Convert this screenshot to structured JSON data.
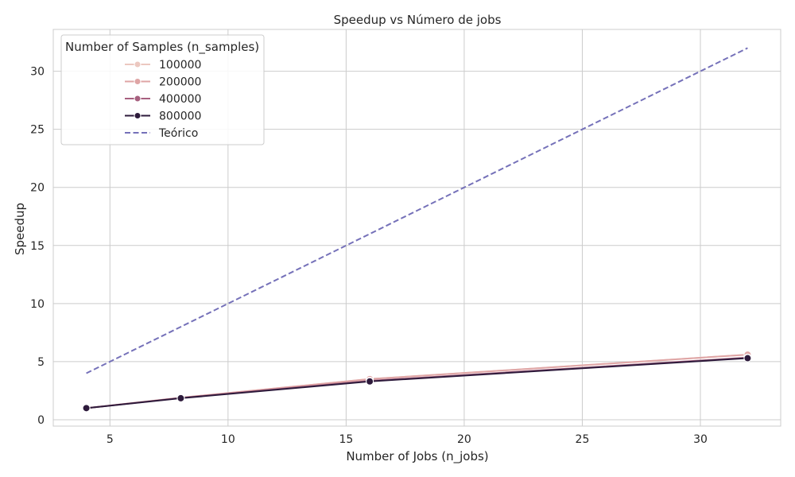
{
  "chart_data": {
    "type": "line",
    "title": "Speedup vs Número de jobs",
    "xlabel": "Number of Jobs (n_jobs)",
    "ylabel": "Speedup",
    "xlim": [
      2.6,
      33.4
    ],
    "ylim": [
      -0.55,
      33.6
    ],
    "xticks": [
      5,
      10,
      15,
      20,
      25,
      30
    ],
    "yticks": [
      0,
      5,
      10,
      15,
      20,
      25,
      30
    ],
    "grid": true,
    "legend": {
      "title": "Number of Samples (n_samples)",
      "placement": "top-left"
    },
    "x": [
      4,
      8,
      16,
      32
    ],
    "series": [
      {
        "name": "100000",
        "values": [
          1.0,
          1.9,
          3.5,
          5.6
        ],
        "color": "#ecc8c0",
        "marker": true,
        "dashed": false
      },
      {
        "name": "200000",
        "values": [
          1.0,
          1.9,
          3.5,
          5.6
        ],
        "color": "#dfa5a5",
        "marker": true,
        "dashed": false
      },
      {
        "name": "400000",
        "values": [
          1.0,
          1.88,
          3.35,
          5.35
        ],
        "color": "#a7607f",
        "marker": true,
        "dashed": false
      },
      {
        "name": "800000",
        "values": [
          1.0,
          1.85,
          3.3,
          5.3
        ],
        "color": "#2d1a3b",
        "marker": true,
        "dashed": false
      },
      {
        "name": "Teórico",
        "values": [
          4,
          8,
          16,
          32
        ],
        "color": "#7571b9",
        "marker": false,
        "dashed": true
      }
    ]
  }
}
